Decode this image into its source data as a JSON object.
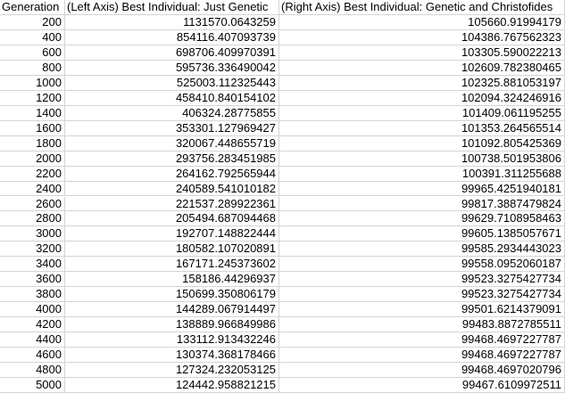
{
  "table": {
    "header": [
      "Generation",
      "(Left Axis) Best Individual: Just Genetic",
      "(Right Axis) Best Individual: Genetic and Christofides"
    ],
    "rows": [
      [
        "200",
        "1131570.0643259",
        "105660.91994179"
      ],
      [
        "400",
        "854116.407093739",
        "104386.767562323"
      ],
      [
        "600",
        "698706.409970391",
        "103305.590022213"
      ],
      [
        "800",
        "595736.336490042",
        "102609.782380465"
      ],
      [
        "1000",
        "525003.112325443",
        "102325.881053197"
      ],
      [
        "1200",
        "458410.840154102",
        "102094.324246916"
      ],
      [
        "1400",
        "406324.28775855",
        "101409.061195255"
      ],
      [
        "1600",
        "353301.127969427",
        "101353.264565514"
      ],
      [
        "1800",
        "320067.448655719",
        "101092.805425369"
      ],
      [
        "2000",
        "293756.283451985",
        "100738.501953806"
      ],
      [
        "2200",
        "264162.792565944",
        "100391.311255688"
      ],
      [
        "2400",
        "240589.541010182",
        "99965.4251940181"
      ],
      [
        "2600",
        "221537.289922361",
        "99817.3887479824"
      ],
      [
        "2800",
        "205494.687094468",
        "99629.7108958463"
      ],
      [
        "3000",
        "192707.148822444",
        "99605.1385057671"
      ],
      [
        "3200",
        "180582.107020891",
        "99585.2934443023"
      ],
      [
        "3400",
        "167171.245373602",
        "99558.0952060187"
      ],
      [
        "3600",
        "158186.44296937",
        "99523.3275427734"
      ],
      [
        "3800",
        "150699.350806179",
        "99523.3275427734"
      ],
      [
        "4000",
        "144289.067914497",
        "99501.6214379091"
      ],
      [
        "4200",
        "138889.966849986",
        "99483.8872785511"
      ],
      [
        "4400",
        "133112.913432246",
        "99468.4697227787"
      ],
      [
        "4600",
        "130374.368178466",
        "99468.4697227787"
      ],
      [
        "4800",
        "127324.232053125",
        "99468.4697020796"
      ],
      [
        "5000",
        "124442.958821215",
        "99467.6109972511"
      ]
    ]
  }
}
